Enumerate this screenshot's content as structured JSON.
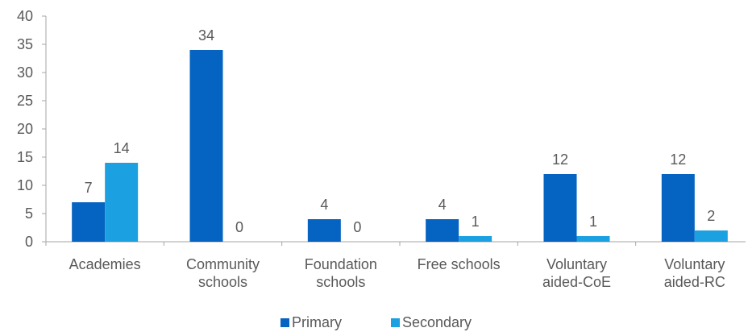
{
  "chart_data": {
    "type": "bar",
    "title": "",
    "xlabel": "",
    "ylabel": "",
    "ylim": [
      0,
      40
    ],
    "yticks": [
      0,
      5,
      10,
      15,
      20,
      25,
      30,
      35,
      40
    ],
    "grid": false,
    "legend_position": "bottom",
    "categories": [
      [
        "Academies"
      ],
      [
        "Community",
        "schools"
      ],
      [
        "Foundation",
        "schools"
      ],
      [
        "Free schools"
      ],
      [
        "Voluntary",
        "aided-CoE"
      ],
      [
        "Voluntary",
        "aided-RC"
      ]
    ],
    "series": [
      {
        "name": "Primary",
        "color": "#0563C1",
        "values": [
          7,
          34,
          4,
          4,
          12,
          12
        ]
      },
      {
        "name": "Secondary",
        "color": "#1BA1E2",
        "values": [
          14,
          0,
          0,
          1,
          1,
          2
        ]
      }
    ]
  }
}
